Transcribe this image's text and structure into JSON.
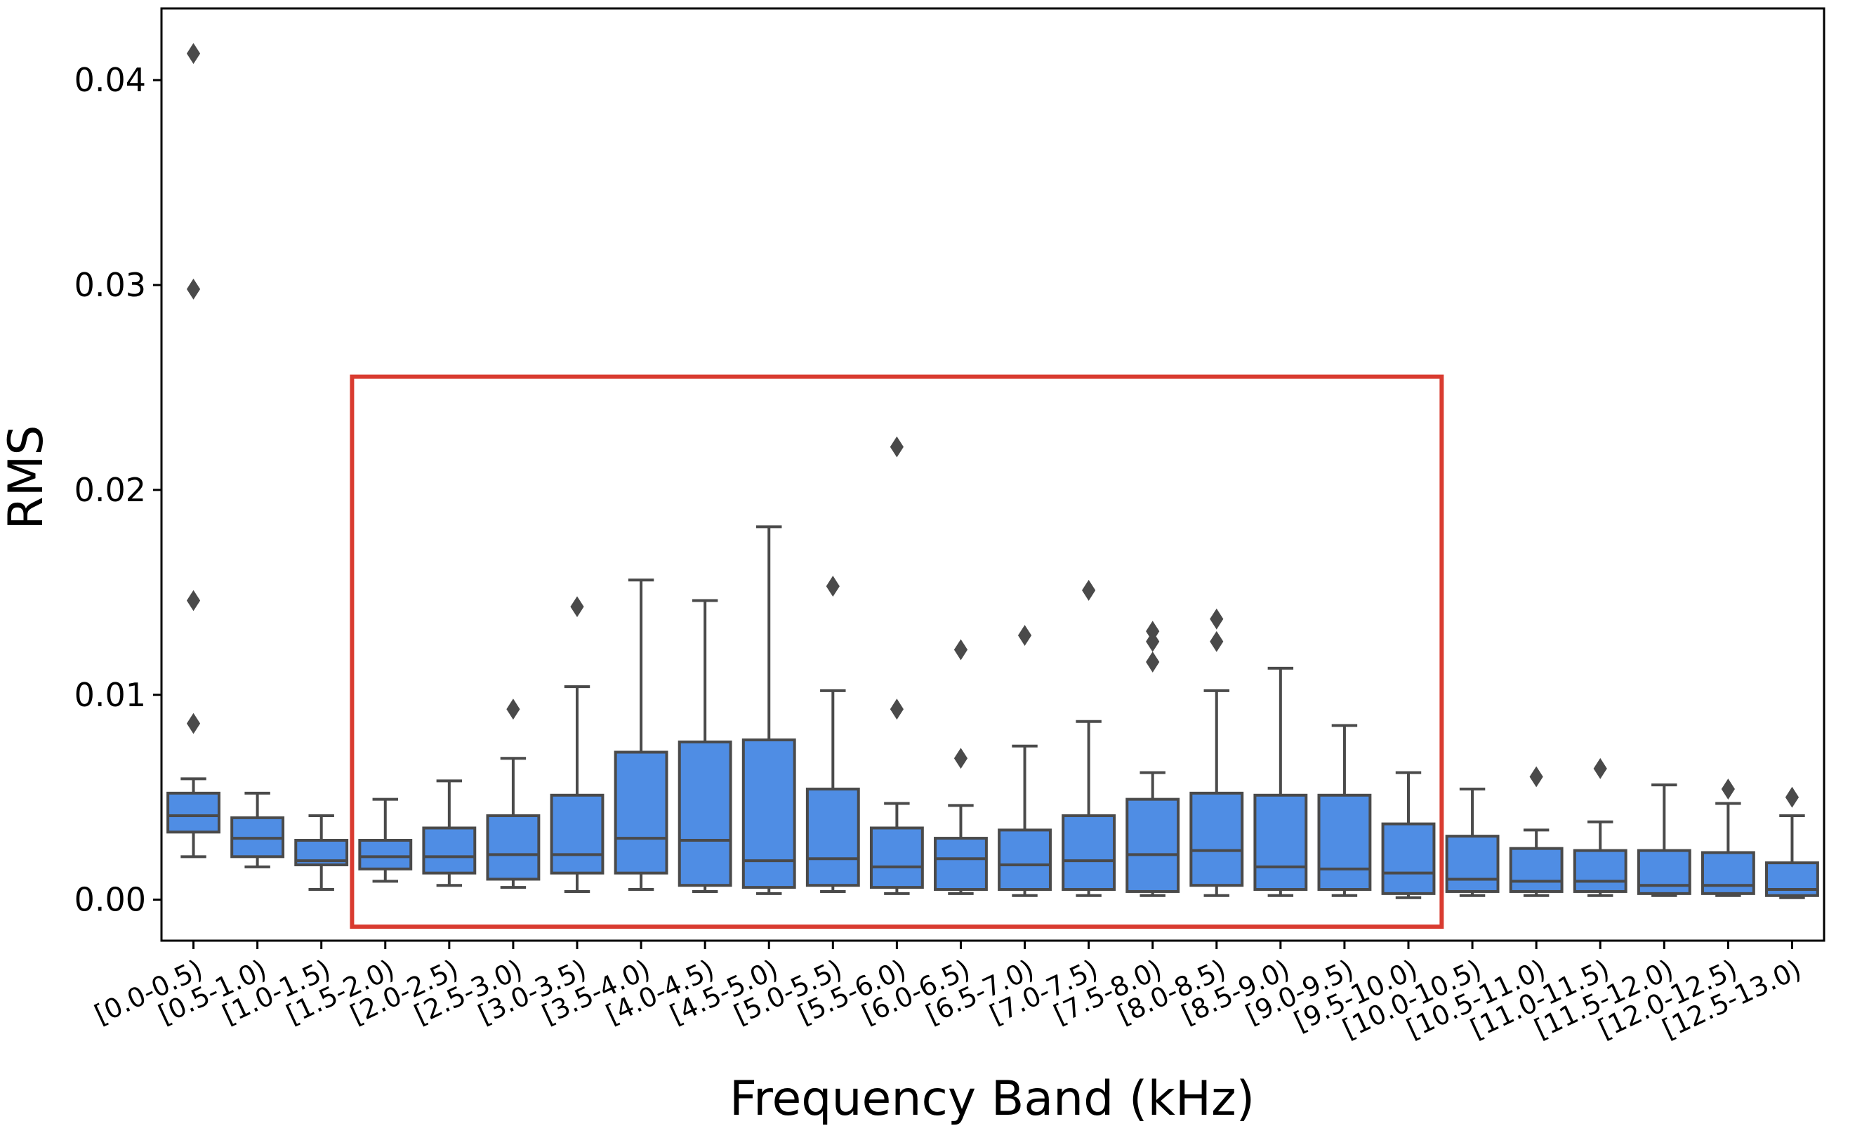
{
  "chart_data": {
    "type": "box",
    "xlabel": "Frequency Band (kHz)",
    "ylabel": "RMS",
    "ylim": [
      -0.002,
      0.0435
    ],
    "yticks": [
      0.0,
      0.01,
      0.02,
      0.03,
      0.04
    ],
    "ytick_labels": [
      "0.00",
      "0.01",
      "0.02",
      "0.03",
      "0.04"
    ],
    "box_color": "#4f8de4",
    "edge_color": "#4a4a4a",
    "highlight_color": "#d93b30",
    "highlight_range": {
      "from": "[1.5-2.0)",
      "to": "[9.5-10.0)"
    },
    "categories": [
      "[0.0-0.5)",
      "[0.5-1.0)",
      "[1.0-1.5)",
      "[1.5-2.0)",
      "[2.0-2.5)",
      "[2.5-3.0)",
      "[3.0-3.5)",
      "[3.5-4.0)",
      "[4.0-4.5)",
      "[4.5-5.0)",
      "[5.0-5.5)",
      "[5.5-6.0)",
      "[6.0-6.5)",
      "[6.5-7.0)",
      "[7.0-7.5)",
      "[7.5-8.0)",
      "[8.0-8.5)",
      "[8.5-9.0)",
      "[9.0-9.5)",
      "[9.5-10.0)",
      "[10.0-10.5)",
      "[10.5-11.0)",
      "[11.0-11.5)",
      "[11.5-12.0)",
      "[12.0-12.5)",
      "[12.5-13.0)"
    ],
    "boxes": [
      {
        "whislo": 0.0021,
        "q1": 0.0033,
        "med": 0.0041,
        "q3": 0.0052,
        "whishi": 0.0059,
        "fliers": [
          0.0413,
          0.0298,
          0.0146,
          0.0086
        ]
      },
      {
        "whislo": 0.0016,
        "q1": 0.0021,
        "med": 0.003,
        "q3": 0.004,
        "whishi": 0.0052,
        "fliers": []
      },
      {
        "whislo": 0.0005,
        "q1": 0.0017,
        "med": 0.0019,
        "q3": 0.0029,
        "whishi": 0.0041,
        "fliers": []
      },
      {
        "whislo": 0.0009,
        "q1": 0.0015,
        "med": 0.0021,
        "q3": 0.0029,
        "whishi": 0.0049,
        "fliers": []
      },
      {
        "whislo": 0.0007,
        "q1": 0.0013,
        "med": 0.0021,
        "q3": 0.0035,
        "whishi": 0.0058,
        "fliers": []
      },
      {
        "whislo": 0.0006,
        "q1": 0.001,
        "med": 0.0022,
        "q3": 0.0041,
        "whishi": 0.0069,
        "fliers": [
          0.0093
        ]
      },
      {
        "whislo": 0.0004,
        "q1": 0.0013,
        "med": 0.0022,
        "q3": 0.0051,
        "whishi": 0.0104,
        "fliers": [
          0.0143
        ]
      },
      {
        "whislo": 0.0005,
        "q1": 0.0013,
        "med": 0.003,
        "q3": 0.0072,
        "whishi": 0.0156,
        "fliers": []
      },
      {
        "whislo": 0.0004,
        "q1": 0.0007,
        "med": 0.0029,
        "q3": 0.0077,
        "whishi": 0.0146,
        "fliers": []
      },
      {
        "whislo": 0.0003,
        "q1": 0.0006,
        "med": 0.0019,
        "q3": 0.0078,
        "whishi": 0.0182,
        "fliers": []
      },
      {
        "whislo": 0.0004,
        "q1": 0.0007,
        "med": 0.002,
        "q3": 0.0054,
        "whishi": 0.0102,
        "fliers": [
          0.0153
        ]
      },
      {
        "whislo": 0.0003,
        "q1": 0.0006,
        "med": 0.0016,
        "q3": 0.0035,
        "whishi": 0.0047,
        "fliers": [
          0.0221,
          0.0093
        ]
      },
      {
        "whislo": 0.0003,
        "q1": 0.0005,
        "med": 0.002,
        "q3": 0.003,
        "whishi": 0.0046,
        "fliers": [
          0.0122,
          0.0069
        ]
      },
      {
        "whislo": 0.0002,
        "q1": 0.0005,
        "med": 0.0017,
        "q3": 0.0034,
        "whishi": 0.0075,
        "fliers": [
          0.0129
        ]
      },
      {
        "whislo": 0.0002,
        "q1": 0.0005,
        "med": 0.0019,
        "q3": 0.0041,
        "whishi": 0.0087,
        "fliers": [
          0.0151
        ]
      },
      {
        "whislo": 0.0002,
        "q1": 0.0004,
        "med": 0.0022,
        "q3": 0.0049,
        "whishi": 0.0062,
        "fliers": [
          0.0131,
          0.0126,
          0.0116
        ]
      },
      {
        "whislo": 0.0002,
        "q1": 0.0007,
        "med": 0.0024,
        "q3": 0.0052,
        "whishi": 0.0102,
        "fliers": [
          0.0137,
          0.0126
        ]
      },
      {
        "whislo": 0.0002,
        "q1": 0.0005,
        "med": 0.0016,
        "q3": 0.0051,
        "whishi": 0.0113,
        "fliers": []
      },
      {
        "whislo": 0.0002,
        "q1": 0.0005,
        "med": 0.0015,
        "q3": 0.0051,
        "whishi": 0.0085,
        "fliers": []
      },
      {
        "whislo": 0.0001,
        "q1": 0.0003,
        "med": 0.0013,
        "q3": 0.0037,
        "whishi": 0.0062,
        "fliers": []
      },
      {
        "whislo": 0.0002,
        "q1": 0.0004,
        "med": 0.001,
        "q3": 0.0031,
        "whishi": 0.0054,
        "fliers": []
      },
      {
        "whislo": 0.0002,
        "q1": 0.0004,
        "med": 0.0009,
        "q3": 0.0025,
        "whishi": 0.0034,
        "fliers": [
          0.006
        ]
      },
      {
        "whislo": 0.0002,
        "q1": 0.0004,
        "med": 0.0009,
        "q3": 0.0024,
        "whishi": 0.0038,
        "fliers": [
          0.0064
        ]
      },
      {
        "whislo": 0.0002,
        "q1": 0.0003,
        "med": 0.0007,
        "q3": 0.0024,
        "whishi": 0.0056,
        "fliers": []
      },
      {
        "whislo": 0.0002,
        "q1": 0.0003,
        "med": 0.0007,
        "q3": 0.0023,
        "whishi": 0.0047,
        "fliers": [
          0.0054
        ]
      },
      {
        "whislo": 0.0001,
        "q1": 0.0002,
        "med": 0.0005,
        "q3": 0.0018,
        "whishi": 0.0041,
        "fliers": [
          0.005
        ]
      }
    ]
  }
}
